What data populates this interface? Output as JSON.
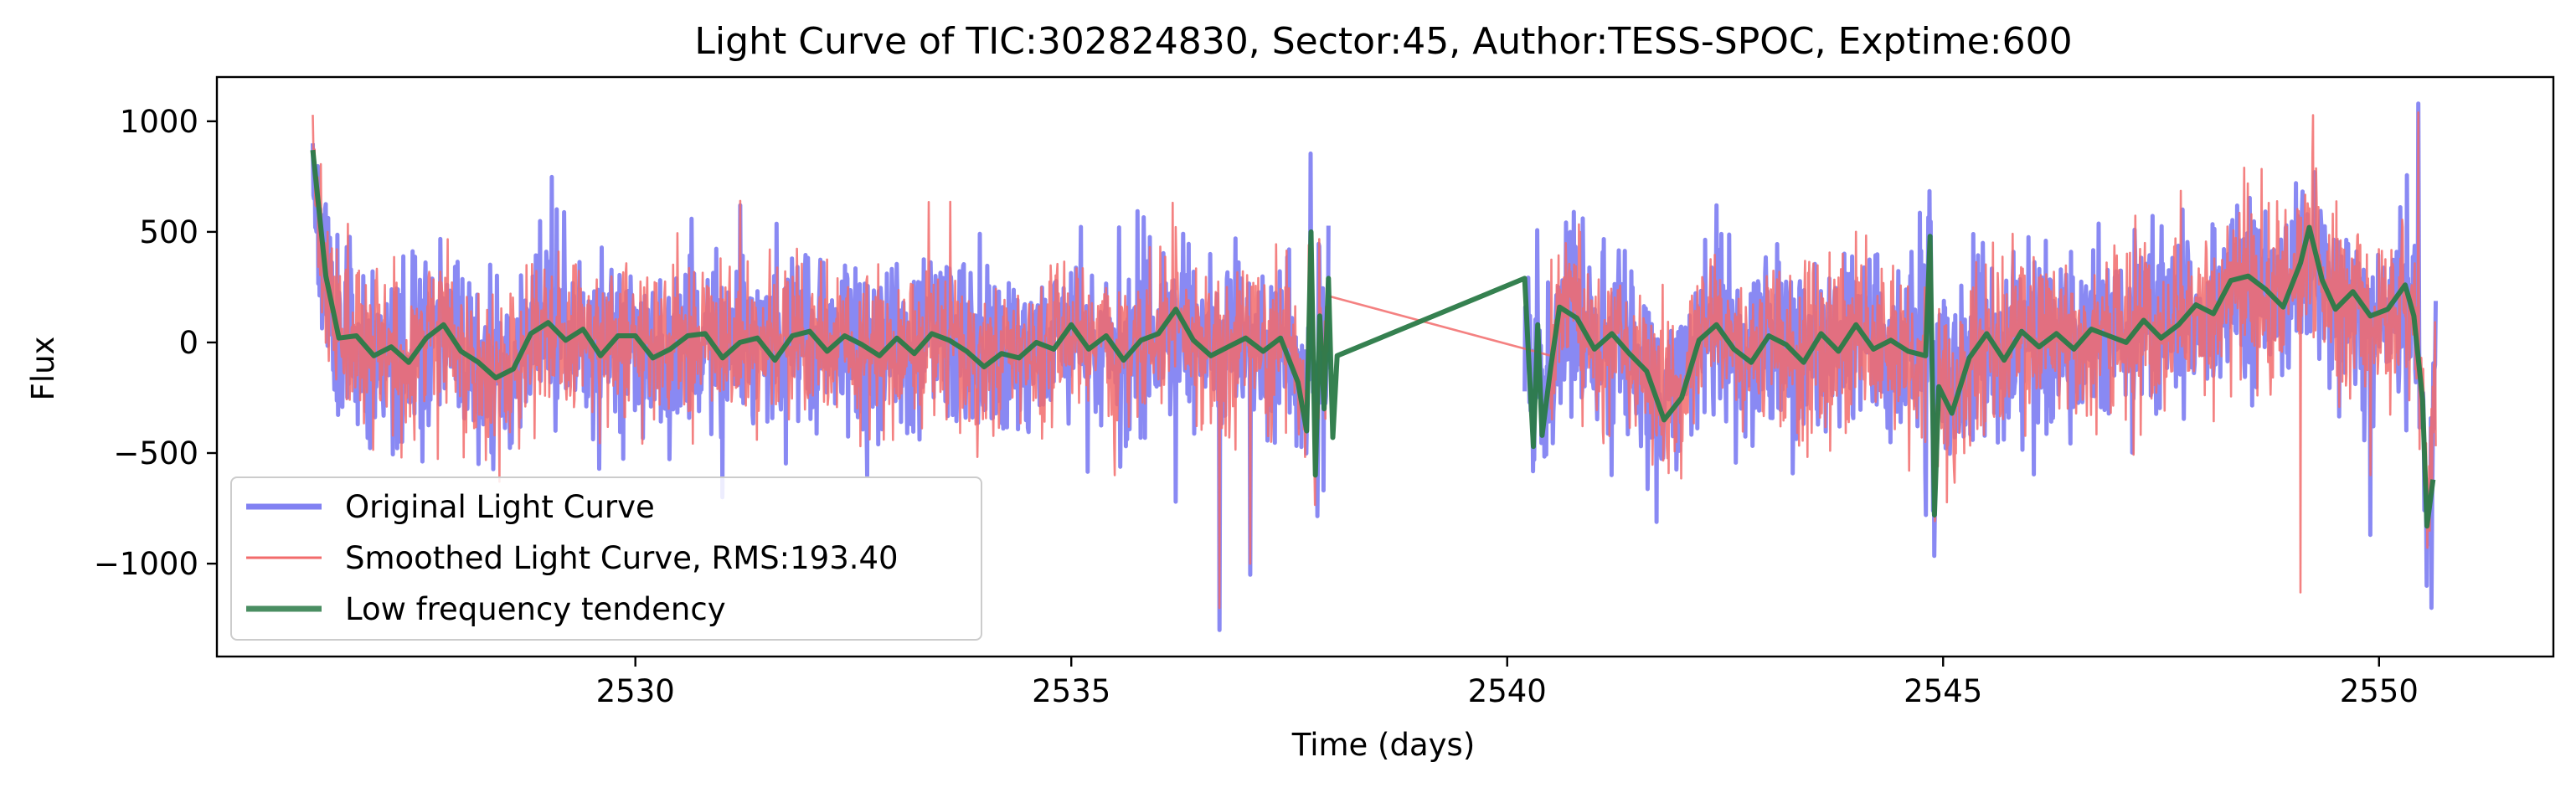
{
  "chart_data": {
    "type": "line",
    "title": "Light Curve of TIC:302824830, Sector:45, Author:TESS-SPOC, Exptime:600",
    "xlabel": "Time (days)",
    "ylabel": "Flux",
    "xlim": [
      2525.2,
      2552.0
    ],
    "ylim": [
      -1420,
      1200
    ],
    "xticks": [
      2530,
      2535,
      2540,
      2545,
      2550
    ],
    "yticks": [
      -1000,
      -500,
      0,
      500,
      1000
    ],
    "xtick_labels": [
      "2530",
      "2535",
      "2540",
      "2545",
      "2550"
    ],
    "ytick_labels": [
      "−1000",
      "−500",
      "0",
      "500",
      "1000"
    ],
    "grid": false,
    "legend_position": "lower-left",
    "colors": {
      "original": "#6b6bf0",
      "smoothed": "#f26b6b",
      "trend": "#2a7a47"
    },
    "series": [
      {
        "name": "Original Light Curve",
        "color": "#6b6bf0",
        "segments": [
          {
            "t_start": 2526.3,
            "t_end": 2537.95,
            "n": 1650,
            "noise": 190,
            "seed": 11,
            "spikes": [
              [
                2526.3,
                900
              ],
              [
                2526.35,
                780
              ],
              [
                2531.0,
                -700
              ],
              [
                2531.2,
                620
              ],
              [
                2535.55,
                520
              ],
              [
                2536.7,
                -1300
              ],
              [
                2537.05,
                -1050
              ],
              [
                2536.2,
                -720
              ]
            ]
          },
          {
            "t_start": 2540.2,
            "t_end": 2550.65,
            "n": 1520,
            "noise": 200,
            "seed": 23,
            "spikes": [
              [
                2541.2,
                -600
              ],
              [
                2542.4,
                620
              ],
              [
                2544.8,
                -780
              ],
              [
                2549.05,
                720
              ],
              [
                2549.9,
                -870
              ],
              [
                2550.45,
                1080
              ],
              [
                2550.6,
                -1200
              ],
              [
                2550.55,
                -1100
              ]
            ]
          }
        ]
      },
      {
        "name": "Smoothed Light Curve, RMS:193.40",
        "color": "#f26b6b",
        "segments": [
          {
            "t_start": 2526.3,
            "t_end": 2537.95,
            "n": 1650,
            "noise": 175,
            "seed": 31,
            "spikes": [
              [
                2531.2,
                640
              ],
              [
                2536.7,
                -1200
              ],
              [
                2537.05,
                -1000
              ],
              [
                2535.5,
                -600
              ]
            ]
          },
          {
            "t_start": 2537.95,
            "t_end": 2540.5,
            "n": 2,
            "noise": 0,
            "seed": 1,
            "line": [
              [
                2537.95,
                210
              ],
              [
                2540.5,
                -60
              ]
            ],
            "spikes": []
          },
          {
            "t_start": 2540.5,
            "t_end": 2550.65,
            "n": 1480,
            "noise": 185,
            "seed": 37,
            "spikes": [
              [
                2549.1,
                -1130
              ],
              [
                2549.9,
                -600
              ],
              [
                2550.45,
                1040
              ],
              [
                2550.6,
                -300
              ]
            ]
          }
        ]
      },
      {
        "name": "Low frequency tendency",
        "color": "#2a7a47",
        "points": [
          [
            2526.3,
            870
          ],
          [
            2526.45,
            300
          ],
          [
            2526.6,
            20
          ],
          [
            2526.8,
            30
          ],
          [
            2527.0,
            -60
          ],
          [
            2527.2,
            -20
          ],
          [
            2527.4,
            -90
          ],
          [
            2527.6,
            20
          ],
          [
            2527.8,
            80
          ],
          [
            2528.0,
            -40
          ],
          [
            2528.2,
            -90
          ],
          [
            2528.4,
            -160
          ],
          [
            2528.6,
            -120
          ],
          [
            2528.8,
            40
          ],
          [
            2529.0,
            90
          ],
          [
            2529.2,
            10
          ],
          [
            2529.4,
            60
          ],
          [
            2529.6,
            -60
          ],
          [
            2529.8,
            30
          ],
          [
            2530.0,
            30
          ],
          [
            2530.2,
            -70
          ],
          [
            2530.4,
            -30
          ],
          [
            2530.6,
            30
          ],
          [
            2530.8,
            40
          ],
          [
            2531.0,
            -70
          ],
          [
            2531.2,
            0
          ],
          [
            2531.4,
            20
          ],
          [
            2531.6,
            -80
          ],
          [
            2531.8,
            30
          ],
          [
            2532.0,
            50
          ],
          [
            2532.2,
            -40
          ],
          [
            2532.4,
            30
          ],
          [
            2532.6,
            -10
          ],
          [
            2532.8,
            -60
          ],
          [
            2533.0,
            20
          ],
          [
            2533.2,
            -50
          ],
          [
            2533.4,
            40
          ],
          [
            2533.6,
            10
          ],
          [
            2533.8,
            -40
          ],
          [
            2534.0,
            -110
          ],
          [
            2534.2,
            -50
          ],
          [
            2534.4,
            -70
          ],
          [
            2534.6,
            0
          ],
          [
            2534.8,
            -30
          ],
          [
            2535.0,
            80
          ],
          [
            2535.2,
            -30
          ],
          [
            2535.4,
            30
          ],
          [
            2535.6,
            -80
          ],
          [
            2535.8,
            10
          ],
          [
            2536.0,
            40
          ],
          [
            2536.2,
            150
          ],
          [
            2536.4,
            10
          ],
          [
            2536.6,
            -60
          ],
          [
            2536.8,
            -20
          ],
          [
            2537.0,
            20
          ],
          [
            2537.2,
            -40
          ],
          [
            2537.4,
            20
          ],
          [
            2537.6,
            -180
          ],
          [
            2537.7,
            -400
          ],
          [
            2537.75,
            500
          ],
          [
            2537.8,
            -600
          ],
          [
            2537.85,
            120
          ],
          [
            2537.9,
            -300
          ],
          [
            2537.95,
            290
          ],
          [
            2538.0,
            -430
          ],
          [
            2538.05,
            -60
          ],
          [
            2540.2,
            290
          ],
          [
            2540.25,
            -100
          ],
          [
            2540.3,
            -470
          ],
          [
            2540.35,
            80
          ],
          [
            2540.4,
            -420
          ],
          [
            2540.5,
            -110
          ],
          [
            2540.6,
            160
          ],
          [
            2540.8,
            110
          ],
          [
            2541.0,
            -30
          ],
          [
            2541.2,
            40
          ],
          [
            2541.4,
            -50
          ],
          [
            2541.6,
            -130
          ],
          [
            2541.8,
            -350
          ],
          [
            2542.0,
            -250
          ],
          [
            2542.2,
            10
          ],
          [
            2542.4,
            80
          ],
          [
            2542.6,
            -30
          ],
          [
            2542.8,
            -90
          ],
          [
            2543.0,
            30
          ],
          [
            2543.2,
            -10
          ],
          [
            2543.4,
            -90
          ],
          [
            2543.6,
            40
          ],
          [
            2543.8,
            -40
          ],
          [
            2544.0,
            80
          ],
          [
            2544.2,
            -30
          ],
          [
            2544.4,
            10
          ],
          [
            2544.6,
            -40
          ],
          [
            2544.8,
            -60
          ],
          [
            2544.85,
            480
          ],
          [
            2544.9,
            -780
          ],
          [
            2544.95,
            -200
          ],
          [
            2545.1,
            -320
          ],
          [
            2545.3,
            -70
          ],
          [
            2545.5,
            40
          ],
          [
            2545.7,
            -80
          ],
          [
            2545.9,
            50
          ],
          [
            2546.1,
            -20
          ],
          [
            2546.3,
            40
          ],
          [
            2546.5,
            -30
          ],
          [
            2546.7,
            60
          ],
          [
            2546.9,
            30
          ],
          [
            2547.1,
            0
          ],
          [
            2547.3,
            100
          ],
          [
            2547.5,
            20
          ],
          [
            2547.7,
            80
          ],
          [
            2547.9,
            170
          ],
          [
            2548.1,
            130
          ],
          [
            2548.3,
            280
          ],
          [
            2548.5,
            300
          ],
          [
            2548.7,
            240
          ],
          [
            2548.9,
            160
          ],
          [
            2549.1,
            360
          ],
          [
            2549.2,
            520
          ],
          [
            2549.35,
            280
          ],
          [
            2549.5,
            150
          ],
          [
            2549.7,
            230
          ],
          [
            2549.9,
            120
          ],
          [
            2550.1,
            150
          ],
          [
            2550.3,
            260
          ],
          [
            2550.4,
            120
          ],
          [
            2550.5,
            -260
          ],
          [
            2550.55,
            -830
          ],
          [
            2550.62,
            -620
          ]
        ]
      }
    ]
  }
}
